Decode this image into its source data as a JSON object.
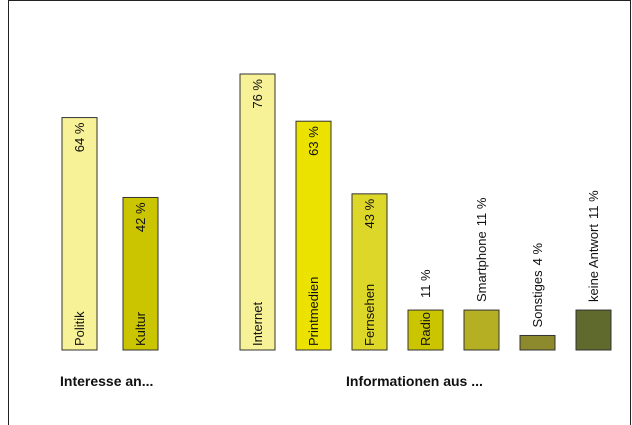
{
  "chart_data": {
    "type": "bar",
    "groups": [
      {
        "label": "Interesse an...",
        "categories": [
          "Politik",
          "Kultur"
        ],
        "values": [
          64,
          42
        ],
        "value_labels": [
          "64 %",
          "42 %"
        ],
        "colors": [
          "#f7f198",
          "#cbc500"
        ]
      },
      {
        "label": "Informationen aus ...",
        "categories": [
          "Internet",
          "Printmedien",
          "Fernsehen",
          "Radio",
          "Smartphone",
          "Sonstiges",
          "keine Antwort"
        ],
        "values": [
          76,
          63,
          43,
          11,
          11,
          4,
          11
        ],
        "value_labels": [
          "76 %",
          "63 %",
          "43 %",
          "11 %",
          "11 %",
          "4 %",
          "11 %"
        ],
        "colors": [
          "#f7f198",
          "#ebe200",
          "#ddd72a",
          "#cbc500",
          "#b5b023",
          "#8c8a2c",
          "#5f6a2c"
        ]
      }
    ],
    "unit": "%",
    "ylim": [
      0,
      80
    ],
    "grid": false,
    "legend": "none"
  }
}
